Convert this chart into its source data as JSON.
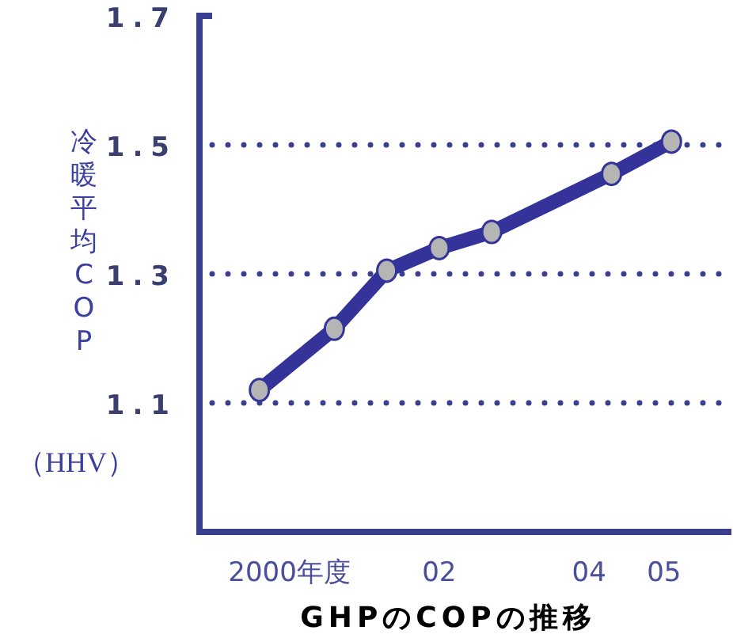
{
  "chart_data": {
    "type": "line",
    "title": "GHPのCOPの推移",
    "ylabel": "冷暖平均COP",
    "annotations": [
      "（HHV）"
    ],
    "x": [
      1999.6,
      2000.6,
      2001.3,
      2002.0,
      2002.7,
      2004.3,
      2005.1
    ],
    "series": [
      {
        "color": "#333399",
        "values": [
          1.12,
          1.215,
          1.305,
          1.34,
          1.365,
          1.455,
          1.505
        ]
      }
    ],
    "xlim": [
      1998.8,
      2005.9
    ],
    "xticks": [
      {
        "value": 2000,
        "label": "2000年度"
      },
      {
        "value": 2002,
        "label": "02"
      },
      {
        "value": 2004,
        "label": "04"
      },
      {
        "value": 2005,
        "label": "05"
      }
    ],
    "ylim": [
      0.9,
      1.7
    ],
    "yticks": [
      1.1,
      1.3,
      1.5,
      1.7
    ],
    "grid": "y",
    "marker": "circle",
    "line_style": "solid"
  }
}
